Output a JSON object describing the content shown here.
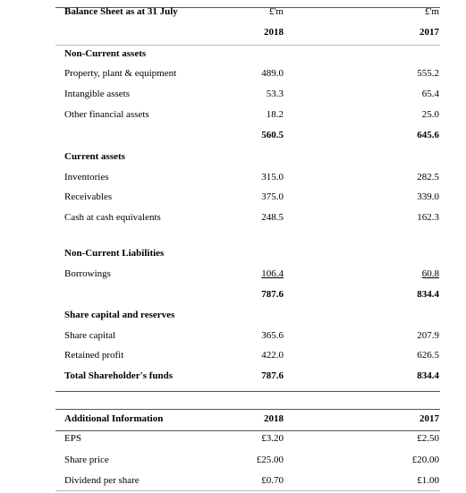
{
  "balance_sheet": {
    "title": "Balance Sheet as at 31 July",
    "units": [
      "£'m",
      "£'m"
    ],
    "years": [
      "2018",
      "2017"
    ],
    "rows": [
      {
        "label": "Non-Current assets"
      },
      {
        "label": "Property, plant & equipment",
        "values": [
          "489.0",
          "555.2"
        ]
      },
      {
        "label": "Intangible assets",
        "values": [
          "53.3",
          "65.4"
        ]
      },
      {
        "label": "Other financial assets",
        "values": [
          "18.2",
          "25.0"
        ]
      },
      {
        "values": [
          "560.5",
          "645.6"
        ]
      },
      {
        "label": "Current assets"
      },
      {
        "label": "Inventories",
        "values": [
          "315.0",
          "282.5"
        ]
      },
      {
        "label": "Receivables",
        "values": [
          "375.0",
          "339.0"
        ]
      },
      {
        "label": "Cash at cash equivalents",
        "values": [
          "248.5",
          "162.3"
        ]
      },
      {
        "label": "Non-Current Liabilities"
      },
      {
        "label": "Borrowings",
        "values": [
          "106.4",
          "60.8"
        ]
      },
      {
        "values": [
          "787.6",
          "834.4"
        ]
      },
      {
        "label": "Share capital and reserves"
      },
      {
        "label": "Share capital",
        "values": [
          "365.6",
          "207.9"
        ]
      },
      {
        "label": "Retained profit",
        "values": [
          "422.0",
          "626.5"
        ]
      },
      {
        "label": "Total Shareholder's  funds",
        "values": [
          "787.6",
          "834.4"
        ]
      }
    ]
  },
  "additional": {
    "title": "Additional Information",
    "years": [
      "2018",
      "2017"
    ],
    "rows": [
      {
        "label": "EPS",
        "values": [
          "£3.20",
          "£2.50"
        ]
      },
      {
        "label": "Share price",
        "values": [
          "£25.00",
          "£20.00"
        ]
      },
      {
        "label": "Dividend per share",
        "values": [
          "£0.70",
          "£1.00"
        ]
      }
    ]
  }
}
